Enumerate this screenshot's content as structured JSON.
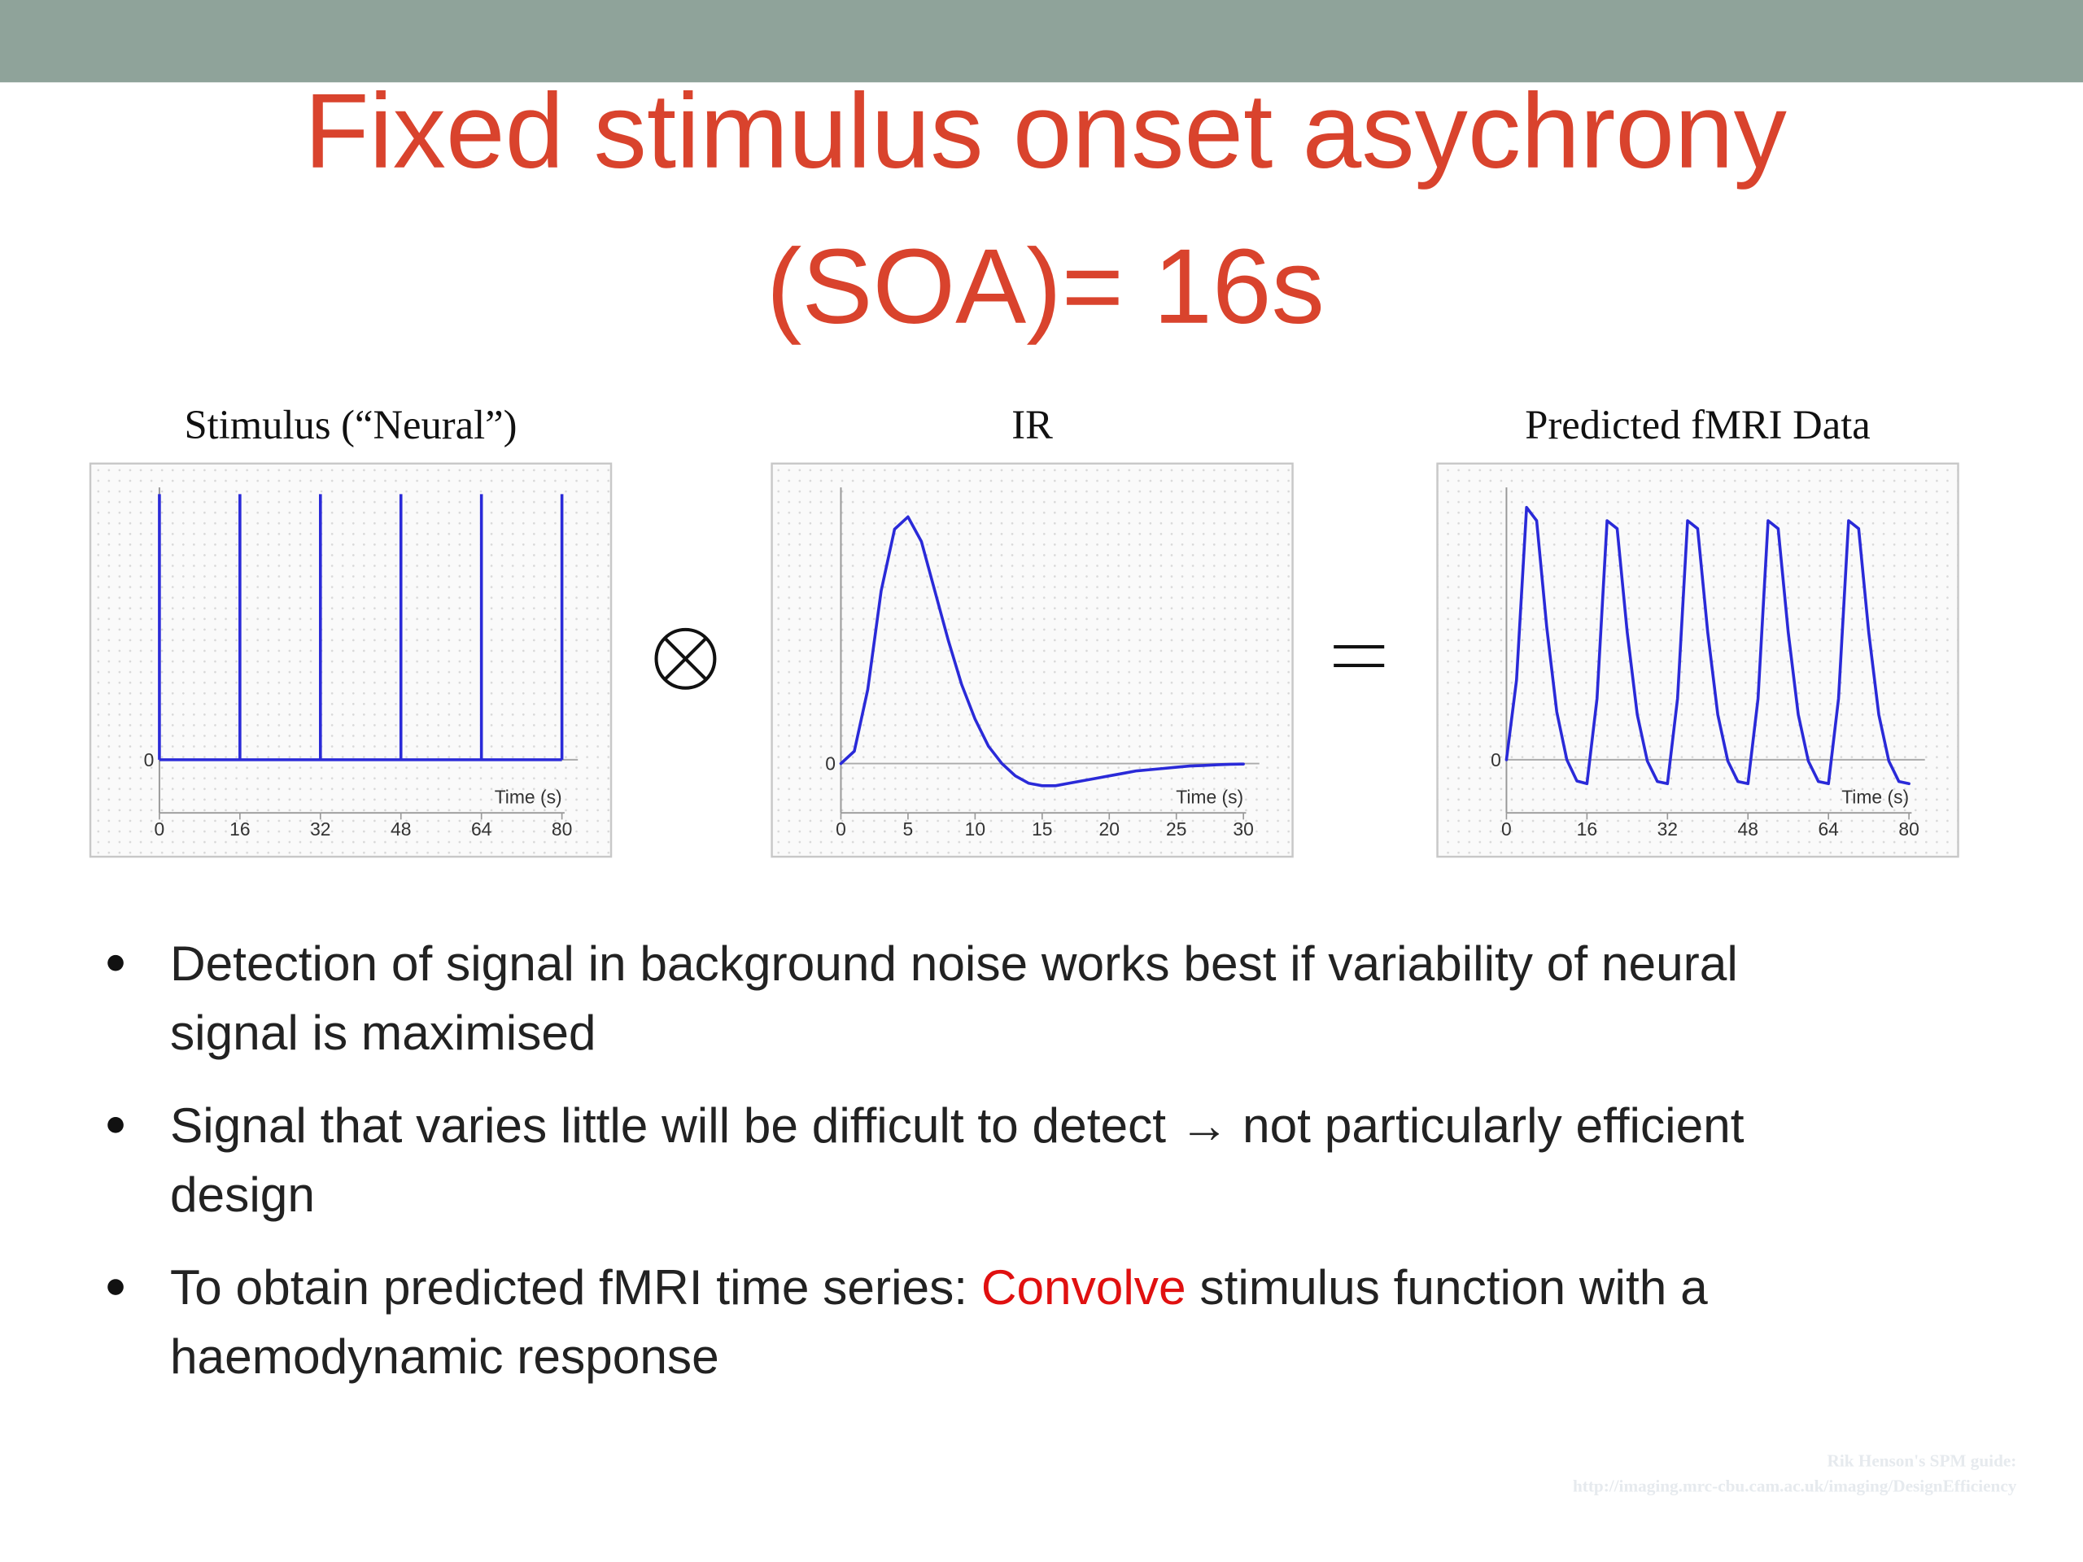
{
  "title_lines": [
    "Fixed stimulus onset asychrony",
    "(SOA)= 16s"
  ],
  "charts": [
    {
      "type": "impulse",
      "title": "Stimulus (“Neural”)",
      "xlabel": "Time (s)",
      "color": "#2a2ad8",
      "x": [
        0,
        16,
        32,
        48,
        64,
        80
      ],
      "values": [
        1,
        1,
        1,
        1,
        1,
        1
      ],
      "xlim": [
        0,
        80
      ],
      "xticks": [
        0,
        16,
        32,
        48,
        64,
        80
      ],
      "ylim": [
        -0.2,
        1.1
      ],
      "yticks": [
        0
      ]
    },
    {
      "type": "line",
      "title": "IR",
      "xlabel": "Time (s)",
      "color": "#2a2ad8",
      "x": [
        0,
        1,
        2,
        3,
        4,
        5,
        6,
        7,
        8,
        9,
        10,
        11,
        12,
        13,
        14,
        15,
        16,
        17,
        18,
        19,
        20,
        21,
        22,
        23,
        24,
        25,
        26,
        27,
        28,
        29,
        30
      ],
      "values": [
        0,
        0.05,
        0.3,
        0.7,
        0.95,
        1.0,
        0.9,
        0.7,
        0.5,
        0.32,
        0.18,
        0.07,
        0.0,
        -0.05,
        -0.08,
        -0.09,
        -0.09,
        -0.08,
        -0.07,
        -0.06,
        -0.05,
        -0.04,
        -0.03,
        -0.025,
        -0.02,
        -0.015,
        -0.01,
        -0.008,
        -0.005,
        -0.003,
        -0.002
      ],
      "xlim": [
        0,
        30
      ],
      "xticks": [
        0,
        5,
        10,
        15,
        20,
        25,
        30
      ],
      "ylim": [
        -0.2,
        1.2
      ],
      "yticks": [
        0
      ]
    },
    {
      "type": "line",
      "title": "Predicted fMRI Data",
      "xlabel": "Time (s)",
      "color": "#2a2ad8",
      "x": [
        0,
        2,
        4,
        6,
        8,
        10,
        12,
        14,
        16,
        18,
        20,
        22,
        24,
        26,
        28,
        30,
        32,
        34,
        36,
        38,
        40,
        42,
        44,
        46,
        48,
        50,
        52,
        54,
        56,
        58,
        60,
        62,
        64,
        66,
        68,
        70,
        72,
        74,
        76,
        78,
        80
      ],
      "values": [
        0,
        0.3,
        0.95,
        0.9,
        0.5,
        0.18,
        0,
        -0.08,
        -0.09,
        0.23,
        0.9,
        0.87,
        0.48,
        0.17,
        -0.005,
        -0.082,
        -0.09,
        0.23,
        0.9,
        0.87,
        0.48,
        0.17,
        -0.005,
        -0.082,
        -0.09,
        0.23,
        0.9,
        0.87,
        0.48,
        0.17,
        -0.005,
        -0.082,
        -0.09,
        0.23,
        0.9,
        0.87,
        0.48,
        0.17,
        -0.005,
        -0.082,
        -0.09
      ],
      "xlim": [
        0,
        80
      ],
      "xticks": [
        0,
        16,
        32,
        48,
        64,
        80
      ],
      "ylim": [
        -0.2,
        1.1
      ],
      "yticks": [
        0
      ]
    }
  ],
  "bullets": [
    {
      "lines": [
        [
          {
            "text": "Detection of signal in background noise works best if variability of neural"
          }
        ],
        [
          {
            "text": "signal is maximised"
          }
        ]
      ]
    },
    {
      "lines": [
        [
          {
            "text": "Signal that varies little will be difficult to detect → not particularly efficient"
          }
        ],
        [
          {
            "text": "design"
          }
        ]
      ]
    },
    {
      "lines": [
        [
          {
            "text": "To obtain predicted fMRI time series: "
          },
          {
            "text": "Convolve",
            "color": "#e01010"
          },
          {
            "text": " stimulus function with a"
          }
        ],
        [
          {
            "text": "haemodynamic response"
          }
        ]
      ]
    }
  ],
  "credit": [
    "Rik Henson's SPM guide:",
    "http://imaging.mrc-cbu.cam.ac.uk/imaging/DesignEfficiency"
  ]
}
